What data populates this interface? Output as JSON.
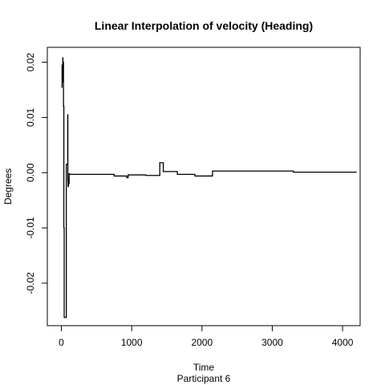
{
  "chart_data": {
    "type": "line",
    "title": "Linear Interpolation of velocity (Heading)",
    "xlabel": "Time",
    "subtitle": "Participant  6",
    "ylabel": "Degrees",
    "xlim": [
      -200,
      4250
    ],
    "ylim": [
      -0.0277,
      0.0227
    ],
    "x_ticks": [
      0,
      1000,
      2000,
      3000,
      4000
    ],
    "y_ticks": [
      -0.02,
      -0.01,
      0.0,
      0.01,
      0.02
    ],
    "x_tick_labels": [
      "0",
      "1000",
      "2000",
      "3000",
      "4000"
    ],
    "y_tick_labels": [
      "-0.02",
      "-0.01",
      "0.00",
      "0.01",
      "0.02"
    ],
    "grid": false,
    "line_color": "#000000",
    "series": [
      {
        "step": true,
        "x": [
          0,
          10,
          15,
          20,
          22,
          25,
          30,
          35,
          40,
          60,
          65,
          70,
          75,
          80,
          85,
          88,
          90,
          92,
          95,
          100,
          105,
          110,
          115,
          120,
          130,
          150,
          750,
          800,
          930,
          950,
          1000,
          1050,
          1100,
          1200,
          1250,
          1380,
          1400,
          1430,
          1450,
          1500,
          1650,
          1700,
          1900,
          1950,
          2150,
          2180,
          2200,
          2400,
          2600,
          3000,
          3300,
          3350,
          3700,
          4200
        ],
        "y": [
          0.0155,
          0.0195,
          0.0165,
          0.0208,
          0.018,
          0.02,
          0.012,
          -0.01,
          -0.0262,
          -0.0262,
          -0.0262,
          0.0015,
          0.0015,
          0.0015,
          0.0015,
          0.0015,
          0.0105,
          -0.0015,
          -0.0025,
          -0.001,
          -0.002,
          -0.0002,
          -0.0003,
          -0.0003,
          -0.0003,
          -0.0003,
          -0.0006,
          -0.0006,
          -0.0009,
          -0.0004,
          -0.0004,
          -0.0004,
          -0.0004,
          -0.0005,
          -0.0005,
          -0.0005,
          0.0018,
          0.0018,
          0.0002,
          0.0002,
          -0.0003,
          -0.0003,
          -0.0006,
          -0.0006,
          0.0003,
          0.0003,
          0.0003,
          0.0003,
          0.0003,
          0.0003,
          0.0001,
          0.0001,
          0.0001,
          0.0001
        ]
      }
    ]
  }
}
